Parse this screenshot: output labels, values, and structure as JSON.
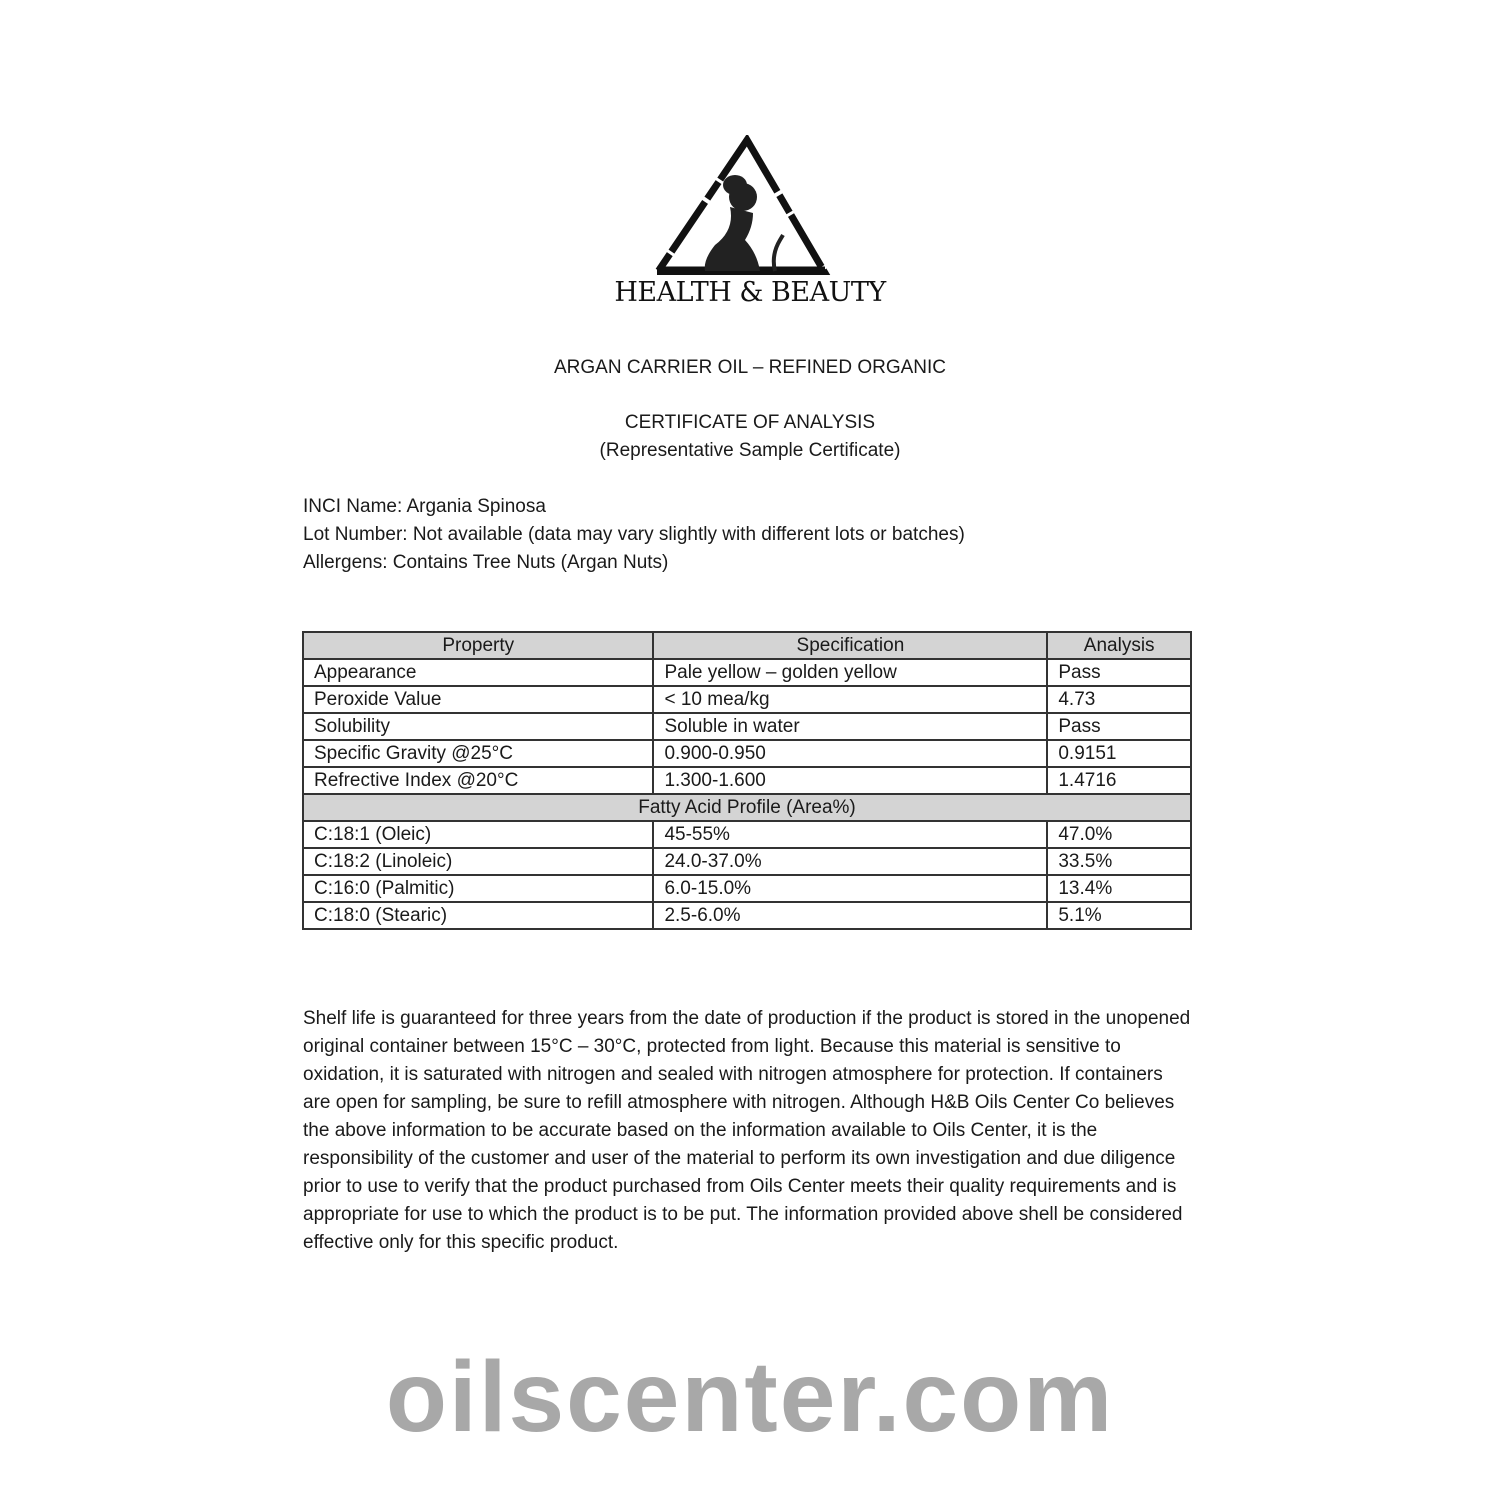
{
  "logo": {
    "text": "HEALTH & BEAUTY",
    "icon": "triangle-woman-silhouette-logo"
  },
  "product_title": "ARGAN CARRIER OIL – REFINED ORGANIC",
  "certificate_title": "CERTIFICATE OF ANALYSIS",
  "certificate_subtitle": "(Representative Sample Certificate)",
  "meta": [
    "INCI Name: Argania Spinosa",
    "Lot Number: Not available (data may vary slightly with different lots or batches)",
    "Allergens: Contains Tree Nuts (Argan Nuts)"
  ],
  "table": {
    "headers": [
      "Property",
      "Specification",
      "Analysis"
    ],
    "rows": [
      [
        "Appearance",
        "Pale yellow – golden yellow",
        "Pass"
      ],
      [
        "Peroxide Value",
        "< 10 mea/kg",
        "4.73"
      ],
      [
        "Solubility",
        "Soluble in water",
        "Pass"
      ],
      [
        "Specific Gravity @25°C",
        "0.900-0.950",
        "0.9151"
      ],
      [
        "Refrective Index @20°C",
        "1.300-1.600",
        "1.4716"
      ]
    ],
    "section": "Fatty Acid Profile (Area%)",
    "fatty_rows": [
      [
        "C:18:1 (Oleic)",
        "45-55%",
        "47.0%"
      ],
      [
        "C:18:2 (Linoleic)",
        "24.0-37.0%",
        "33.5%"
      ],
      [
        "C:16:0 (Palmitic)",
        "6.0-15.0%",
        "13.4%"
      ],
      [
        "C:18:0 (Stearic)",
        "2.5-6.0%",
        "5.1%"
      ]
    ]
  },
  "watermark": "oilscenter.com",
  "paragraph": "Shelf life is guaranteed for three years from the date of production if the product is stored in the unopened original container between 15°C – 30°C, protected from light. Because this material is sensitive to oxidation, it is saturated with nitrogen and sealed with nitrogen atmosphere for protection. If containers are open for sampling, be sure to refill atmosphere with nitrogen. Although H&B Oils Center Co believes the above information to be accurate based on the information available to Oils Center, it is the responsibility of the customer and user of the material to perform its own investigation and due diligence prior to use to verify that the product purchased from Oils Center meets their quality requirements and is appropriate for use to which the product is to be put. The information provided above shell be considered effective only for this specific product."
}
